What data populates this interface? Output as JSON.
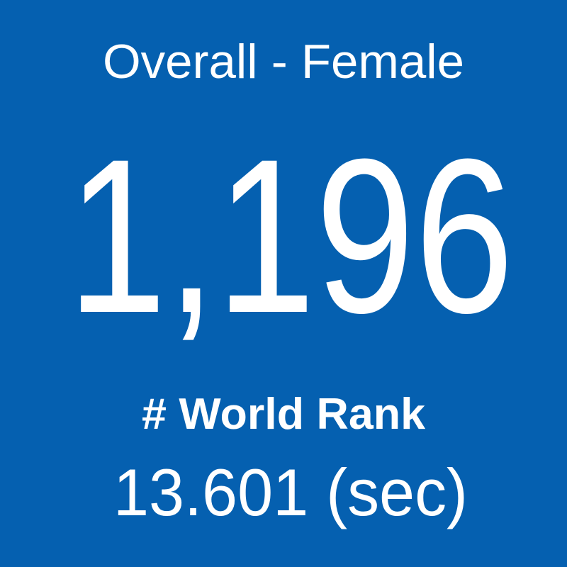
{
  "tile": {
    "title": "Overall - Female",
    "value": "1,196",
    "label": "# World Rank",
    "time": "13.601 (sec)"
  }
}
